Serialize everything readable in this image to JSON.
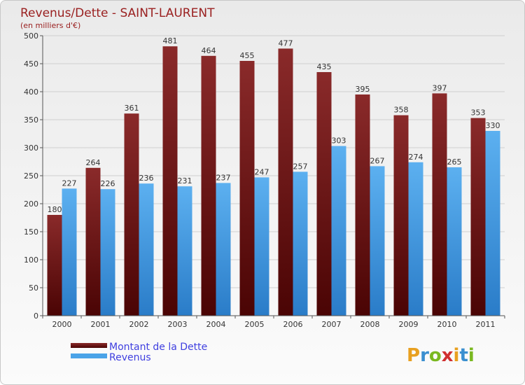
{
  "chart_data": {
    "type": "bar",
    "title": "Revenus/Dette - SAINT-LAURENT",
    "subtitle": "(en milliers d'€)",
    "xlabel": "",
    "ylabel": "",
    "categories": [
      "2000",
      "2001",
      "2002",
      "2003",
      "2004",
      "2005",
      "2006",
      "2007",
      "2008",
      "2009",
      "2010",
      "2011"
    ],
    "series": [
      {
        "name": "Montant de la Dette",
        "color": "#7a1818",
        "values": [
          180,
          264,
          361,
          481,
          464,
          455,
          477,
          435,
          395,
          358,
          397,
          353
        ]
      },
      {
        "name": "Revenus",
        "color": "#4aa3e8",
        "values": [
          227,
          226,
          236,
          231,
          237,
          247,
          257,
          303,
          267,
          274,
          265,
          330
        ]
      }
    ],
    "ylim": [
      0,
      500
    ],
    "yticks": [
      0,
      50,
      100,
      150,
      200,
      250,
      300,
      350,
      400,
      450,
      500
    ],
    "grid": true,
    "legend": "bottom-left"
  },
  "logo": {
    "letters": [
      "P",
      "r",
      "o",
      "x",
      "i",
      "t",
      "i"
    ],
    "colors": [
      "#e8a020",
      "#3a8fd0",
      "#7ab820",
      "#d03030",
      "#e8a020",
      "#3a8fd0",
      "#7ab820"
    ]
  }
}
